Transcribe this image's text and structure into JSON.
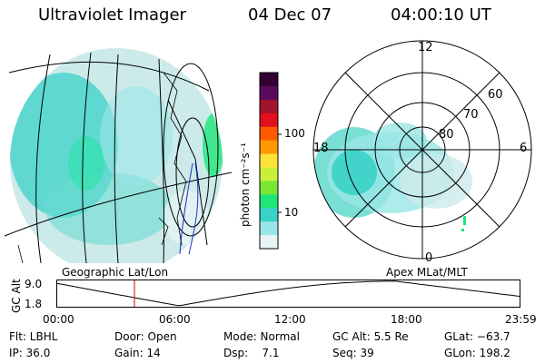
{
  "header": {
    "title": "Ultraviolet Imager",
    "date": "04 Dec 07",
    "time": "04:00:10 UT"
  },
  "left_panel": {
    "label": "Geographic Lat/Lon"
  },
  "right_panel": {
    "label": "Apex MLat/MLT",
    "mlt_labels": [
      "12",
      "6",
      "18",
      "0"
    ],
    "lat_labels": [
      "60",
      "70",
      "80"
    ]
  },
  "colorbar": {
    "unit_label": "photon cm⁻²s⁻¹",
    "ticks": [
      "100",
      "10"
    ],
    "colors": [
      "#330033",
      "#5a0a5a",
      "#a0142d",
      "#e2101c",
      "#ff5a00",
      "#ff9a00",
      "#ffe23a",
      "#c8f03a",
      "#7ae632",
      "#1ee678",
      "#3ad2c8",
      "#9ae6e6",
      "#e6f4f4"
    ]
  },
  "altitude_plot": {
    "ylabel": "GC Alt",
    "y_ticks": [
      "9.0",
      "1.8"
    ],
    "x_ticks": [
      "00:00",
      "06:00",
      "12:00",
      "18:00",
      "23:59"
    ],
    "current_time_hours": 4.0,
    "x_range_hours": [
      0,
      24
    ],
    "y_range_re": [
      1.8,
      9.0
    ],
    "marker_color": "#cc0000"
  },
  "info": {
    "flt": "Flt: LBHL",
    "door": "Door: Open",
    "mode": "Mode: Normal",
    "gc_alt": "GC Alt: 5.5 Re",
    "glat": "GLat: −63.7",
    "ip": "IP: 36.0",
    "gain": "Gain: 14",
    "dsp": "Dsp:    7.1",
    "seq": "Seq: 39",
    "glon": "GLon: 198.2"
  }
}
